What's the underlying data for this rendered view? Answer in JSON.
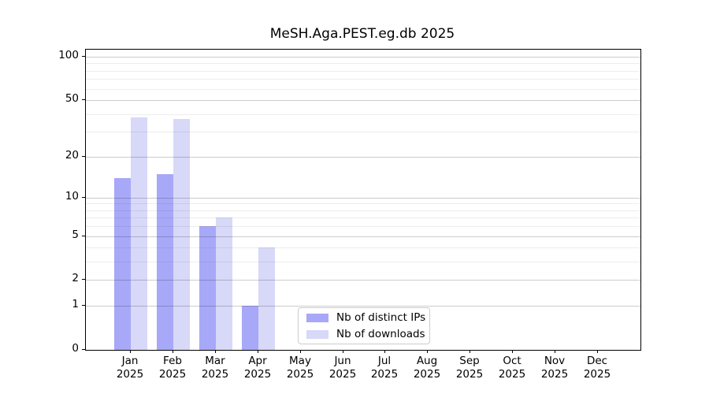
{
  "chart_data": {
    "type": "bar",
    "title": "MeSH.Aga.PEST.eg.db 2025",
    "categories": [
      "Jan",
      "Feb",
      "Mar",
      "Apr",
      "May",
      "Jun",
      "Jul",
      "Aug",
      "Sep",
      "Oct",
      "Nov",
      "Dec"
    ],
    "category_year": "2025",
    "series": [
      {
        "name": "Nb of distinct IPs",
        "color": "#a8a8f8",
        "values": [
          14,
          15,
          6,
          1,
          0,
          0,
          0,
          0,
          0,
          0,
          0,
          0
        ]
      },
      {
        "name": "Nb of downloads",
        "color": "#d8d8f8",
        "values": [
          38,
          37,
          7,
          4,
          0,
          0,
          0,
          0,
          0,
          0,
          0,
          0
        ]
      }
    ],
    "yscale": "log1p",
    "yticks_major": [
      0,
      1,
      2,
      5,
      10,
      20,
      50,
      100
    ],
    "yticks_minor": [
      3,
      4,
      6,
      7,
      8,
      9,
      30,
      40,
      60,
      70,
      80,
      90
    ],
    "ylim": [
      0,
      112
    ],
    "grid": true,
    "legend_position": "lower center",
    "colors": {
      "grid_major": "#cccccc",
      "grid_minor": "#ececec",
      "spine": "#000000",
      "background": "#ffffff"
    }
  }
}
